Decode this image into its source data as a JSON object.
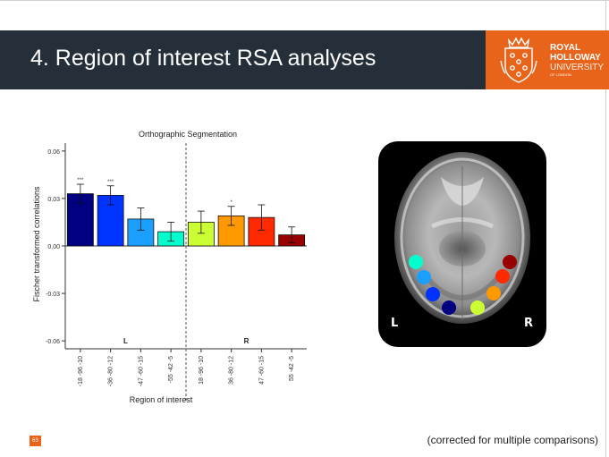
{
  "slide": {
    "title": "4. Region of interest RSA analyses",
    "page_number": "63",
    "footnote": "(corrected for multiple comparisons)"
  },
  "logo": {
    "line1": "ROYAL",
    "line2": "HOLLOWAY",
    "line3": "UNIVERSITY",
    "line4": "OF LONDON",
    "color": "#e8641b"
  },
  "brain": {
    "left_label": "L",
    "right_label": "R",
    "roi_colors": [
      "#00ffcc",
      "#1a9fff",
      "#0033ff",
      "#000080",
      "#ccff33",
      "#ff9900",
      "#ff2a00",
      "#990000"
    ]
  },
  "chart_data": {
    "type": "bar",
    "title": "Orthographic Segmentation",
    "xlabel": "Region of interest",
    "ylabel": "Fischer transformed correlations",
    "ylim": [
      -0.065,
      0.065
    ],
    "yticks": [
      "0.06",
      "0.03",
      "0.00",
      "-0.03",
      "-0.06"
    ],
    "ytick_values": [
      0.06,
      0.03,
      0.0,
      -0.03,
      -0.06
    ],
    "categories": [
      "-18 -96 -10",
      "-36 -80 -12",
      "-47 -60 -15",
      "-55 -42 -5",
      "18 -96 -10",
      "36 -80 -12",
      "47 -60 -15",
      "55 -42 -5"
    ],
    "values": [
      0.033,
      0.032,
      0.017,
      0.009,
      0.015,
      0.019,
      0.018,
      0.007
    ],
    "errors": [
      0.006,
      0.006,
      0.007,
      0.006,
      0.007,
      0.006,
      0.008,
      0.005
    ],
    "significance": [
      "***",
      "***",
      "",
      "",
      "",
      "*",
      "",
      ""
    ],
    "colors": [
      "#000080",
      "#0033ff",
      "#1a9fff",
      "#00ffcc",
      "#ccff33",
      "#ff9900",
      "#ff2a00",
      "#990000"
    ],
    "group_labels": [
      "L",
      "R"
    ],
    "grid": false
  }
}
